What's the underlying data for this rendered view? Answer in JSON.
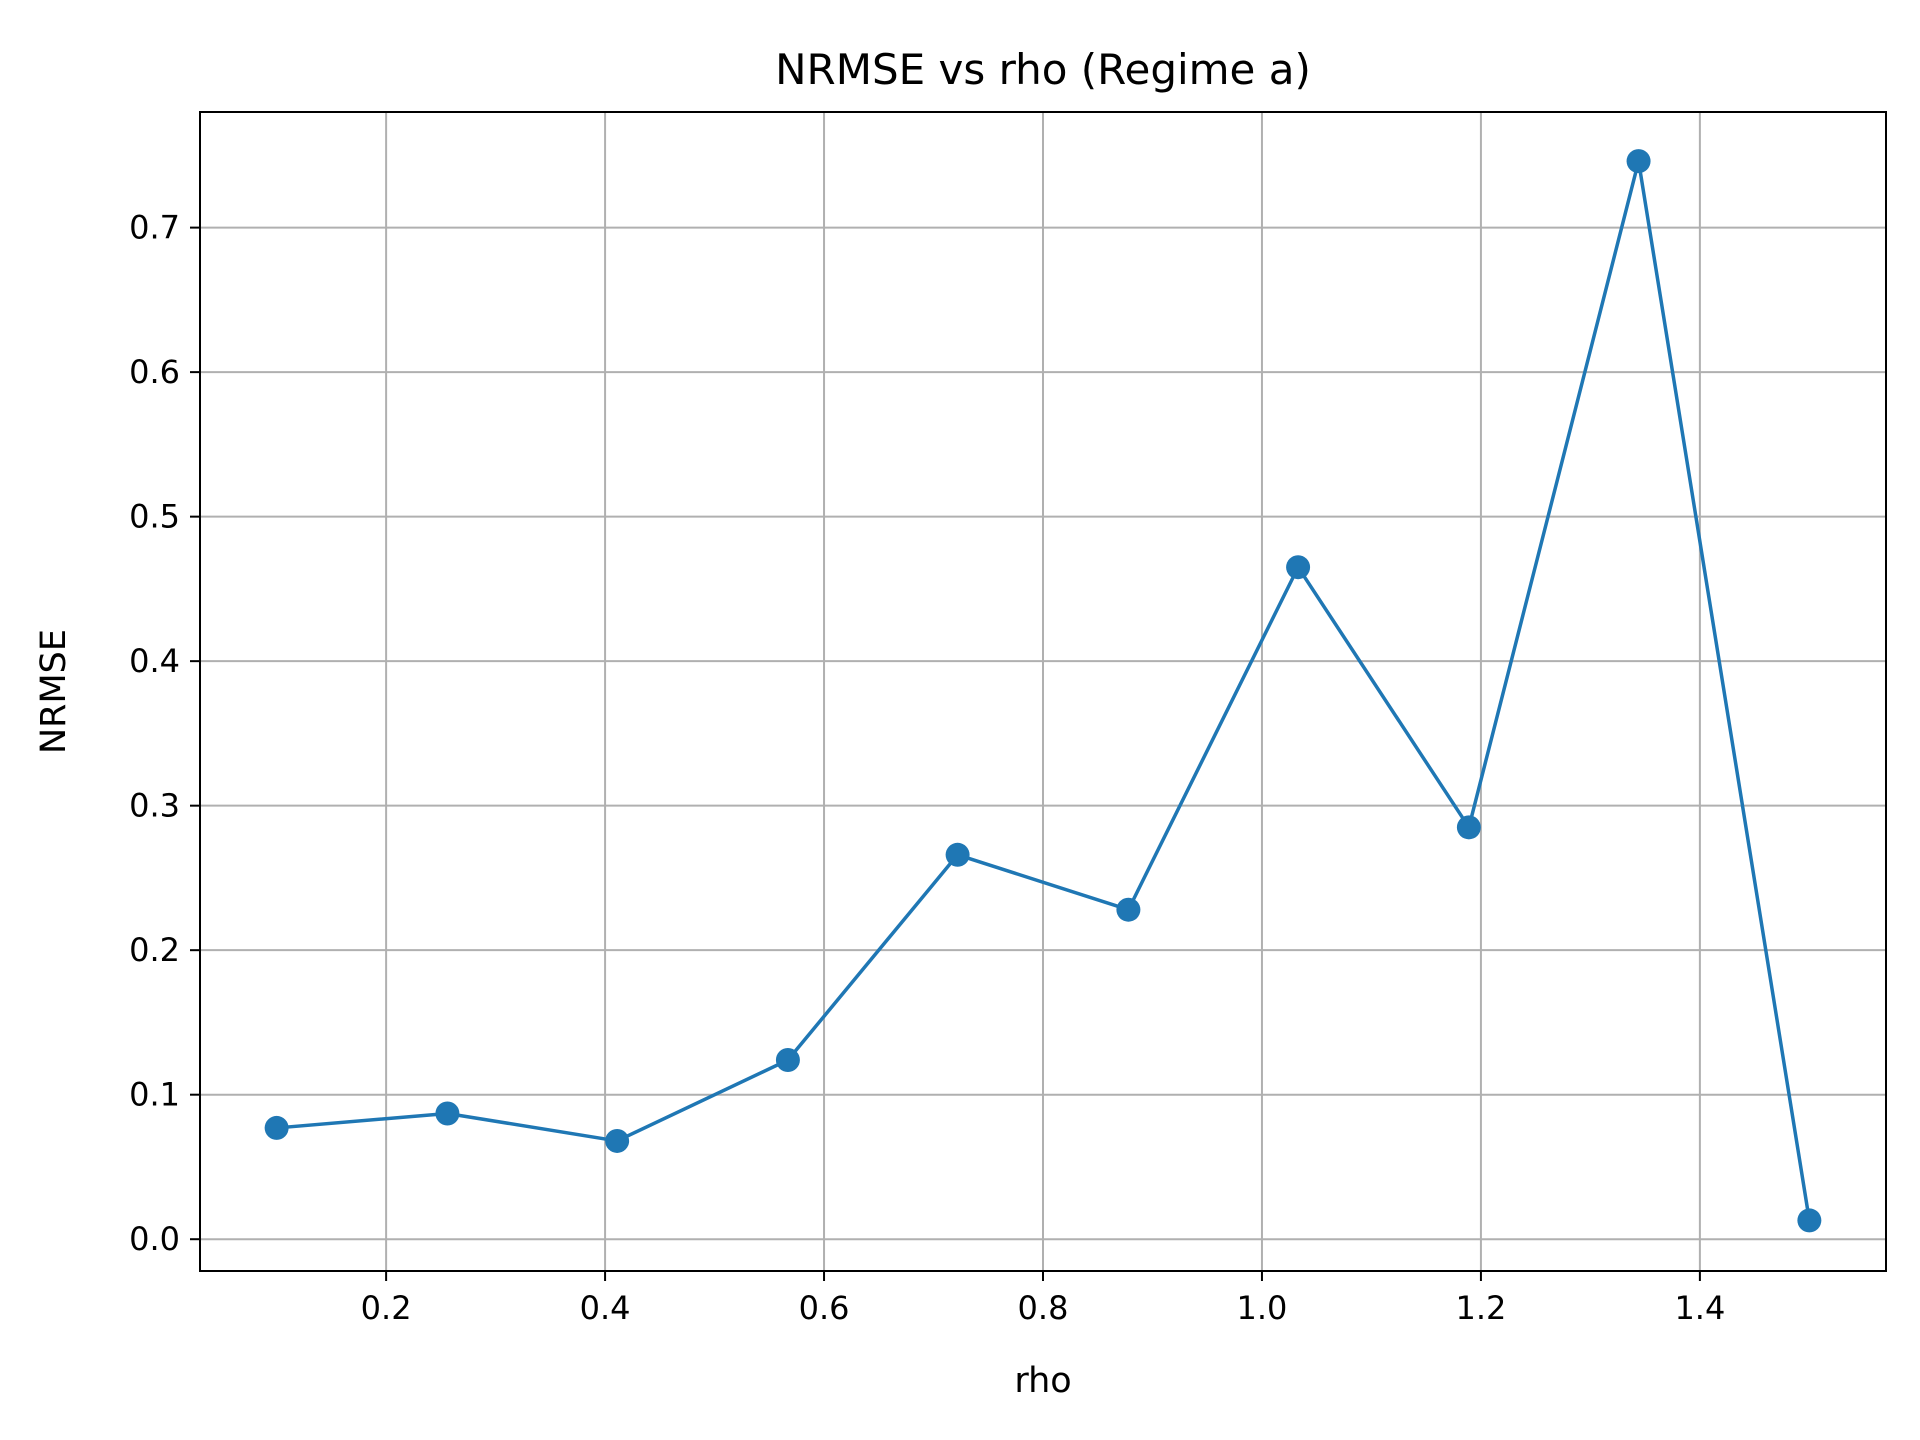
{
  "chart_data": {
    "type": "line",
    "title": "NRMSE vs rho (Regime a)",
    "xlabel": "rho",
    "ylabel": "NRMSE",
    "xlim": [
      0.03,
      1.57
    ],
    "ylim": [
      -0.022,
      0.78
    ],
    "x_ticks": [
      0.2,
      0.4,
      0.6,
      0.8,
      1.0,
      1.2,
      1.4
    ],
    "x_tick_labels": [
      "0.2",
      "0.4",
      "0.6",
      "0.8",
      "1.0",
      "1.2",
      "1.4"
    ],
    "y_ticks": [
      0.0,
      0.1,
      0.2,
      0.3,
      0.4,
      0.5,
      0.6,
      0.7
    ],
    "y_tick_labels": [
      "0.0",
      "0.1",
      "0.2",
      "0.3",
      "0.4",
      "0.5",
      "0.6",
      "0.7"
    ],
    "grid": true,
    "legend": "none",
    "series": [
      {
        "x": [
          0.1,
          0.256,
          0.411,
          0.567,
          0.722,
          0.878,
          1.033,
          1.189,
          1.344,
          1.5
        ],
        "y": [
          0.077,
          0.087,
          0.068,
          0.124,
          0.266,
          0.228,
          0.465,
          0.285,
          0.746,
          0.013
        ],
        "color": "#1f77b4",
        "marker": "circle"
      }
    ],
    "colors": {
      "line": "#1f77b4",
      "grid": "#b0b0b0",
      "axes": "#000000"
    }
  }
}
